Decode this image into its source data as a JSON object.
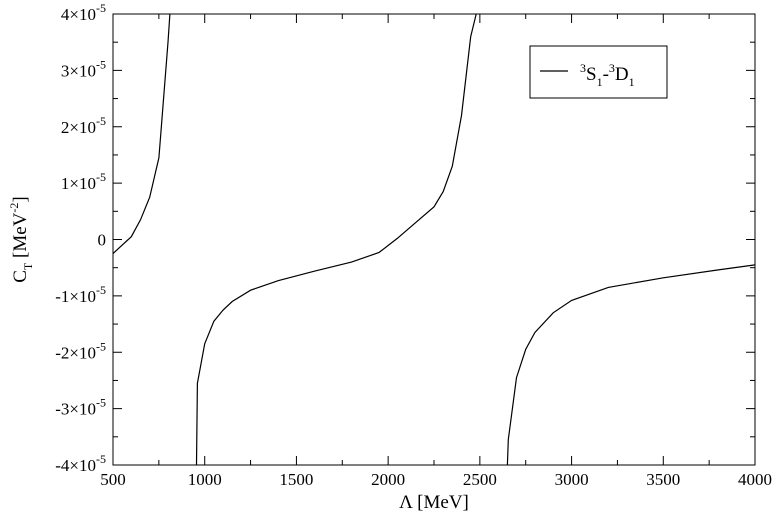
{
  "chart_data": {
    "type": "line",
    "title": "",
    "xlabel": "Λ [MeV]",
    "ylabel": {
      "base": "C",
      "sub": "T",
      "rest": " [MeV",
      "sup": "-2",
      "close": "]"
    },
    "xlim": [
      500,
      4000
    ],
    "ylim": [
      -4e-05,
      4e-05
    ],
    "x_ticks": [
      {
        "value": 500,
        "label": "500"
      },
      {
        "value": 1000,
        "label": "1000"
      },
      {
        "value": 1500,
        "label": "1500"
      },
      {
        "value": 2000,
        "label": "2000"
      },
      {
        "value": 2500,
        "label": "2500"
      },
      {
        "value": 3000,
        "label": "3000"
      },
      {
        "value": 3500,
        "label": "3500"
      },
      {
        "value": 4000,
        "label": "4000"
      }
    ],
    "y_ticks": [
      {
        "value": 4e-05,
        "mant": "4×10",
        "exp": "-5"
      },
      {
        "value": 3e-05,
        "mant": "3×10",
        "exp": "-5"
      },
      {
        "value": 2e-05,
        "mant": "2×10",
        "exp": "-5"
      },
      {
        "value": 1e-05,
        "mant": "1×10",
        "exp": "-5"
      },
      {
        "value": 0,
        "mant": "0",
        "exp": ""
      },
      {
        "value": -1e-05,
        "mant": "-1×10",
        "exp": "-5"
      },
      {
        "value": -2e-05,
        "mant": "-2×10",
        "exp": "-5"
      },
      {
        "value": -3e-05,
        "mant": "-3×10",
        "exp": "-5"
      },
      {
        "value": -4e-05,
        "mant": "-4×10",
        "exp": "-5"
      }
    ],
    "legend": {
      "placement": "top-right",
      "label": {
        "s1": "3",
        "s2": "S",
        "s3": "1",
        "s4": "-",
        "s5": "3",
        "s6": "D",
        "s7": "1"
      }
    },
    "grid": false,
    "series": [
      {
        "segments": [
          [
            [
              500,
              -2.5e-06
            ],
            [
              550,
              -1e-06
            ],
            [
              600,
              5e-07
            ],
            [
              650,
              3.5e-06
            ],
            [
              700,
              7.5e-06
            ],
            [
              750,
              1.45e-05
            ],
            [
              800,
              3.5e-05
            ],
            [
              810,
              4e-05
            ]
          ],
          [
            [
              955,
              -4e-05
            ],
            [
              960,
              -2.55e-05
            ],
            [
              1000,
              -1.85e-05
            ],
            [
              1050,
              -1.45e-05
            ],
            [
              1100,
              -1.25e-05
            ],
            [
              1150,
              -1.1e-05
            ],
            [
              1250,
              -9e-06
            ],
            [
              1400,
              -7.3e-06
            ],
            [
              1600,
              -5.6e-06
            ],
            [
              1800,
              -4e-06
            ],
            [
              1950,
              -2.3e-06
            ],
            [
              2050,
              2e-07
            ],
            [
              2150,
              3e-06
            ],
            [
              2250,
              5.8e-06
            ],
            [
              2300,
              8.5e-06
            ],
            [
              2350,
              1.3e-05
            ],
            [
              2400,
              2.2e-05
            ],
            [
              2450,
              3.6e-05
            ],
            [
              2480,
              4e-05
            ]
          ],
          [
            [
              2650,
              -4e-05
            ],
            [
              2655,
              -3.55e-05
            ],
            [
              2700,
              -2.45e-05
            ],
            [
              2750,
              -1.95e-05
            ],
            [
              2800,
              -1.65e-05
            ],
            [
              2900,
              -1.3e-05
            ],
            [
              3000,
              -1.08e-05
            ],
            [
              3200,
              -8.5e-06
            ],
            [
              3500,
              -6.8e-06
            ],
            [
              3800,
              -5.4e-06
            ],
            [
              4000,
              -4.5e-06
            ]
          ]
        ]
      }
    ]
  }
}
